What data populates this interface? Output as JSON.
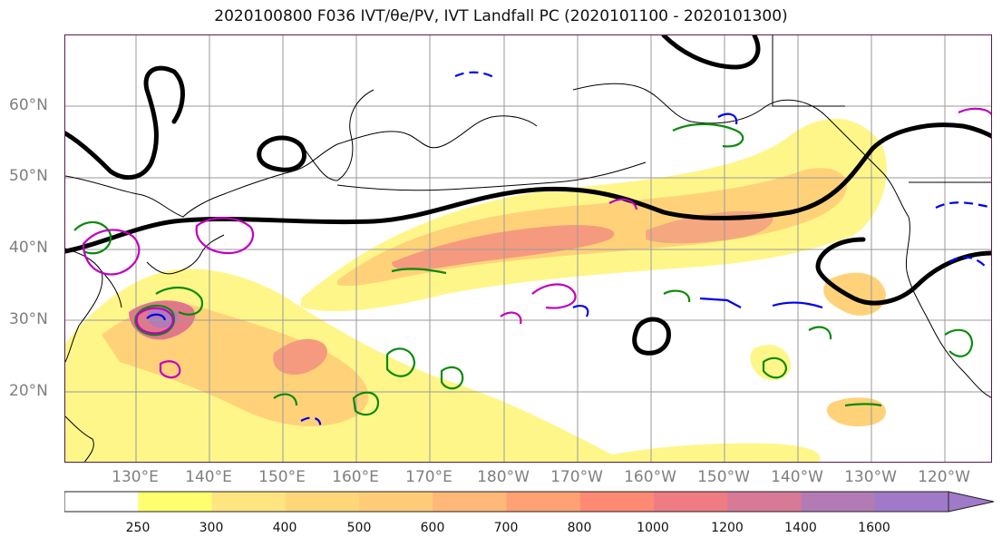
{
  "title": "2020100800 F036 IVT/θe/PV, IVT Landfall PC (2020101100 - 2020101300)",
  "lat_labels": [
    "60°N",
    "50°N",
    "40°N",
    "30°N",
    "20°N"
  ],
  "lon_labels": [
    "130°E",
    "140°E",
    "150°E",
    "160°E",
    "170°E",
    "180°W",
    "170°W",
    "160°W",
    "150°W",
    "140°W",
    "130°W",
    "120°W"
  ],
  "colorbar": {
    "levels": [
      "250",
      "300",
      "400",
      "500",
      "600",
      "700",
      "800",
      "1000",
      "1200",
      "1400",
      "1600"
    ],
    "colors": [
      "#ffffff",
      "#ffff70",
      "#ffe580",
      "#ffd77a",
      "#ffcd78",
      "#ffb877",
      "#ffa173",
      "#ff8a73",
      "#ef7c82",
      "#d77a98",
      "#b27bb6",
      "#a07ac8"
    ]
  },
  "colors": {
    "ivt_light": "#fff68a",
    "ivt_mid": "#ffd27a",
    "ivt_high": "#f59a7e",
    "ivt_peak": "#e1788a",
    "theta_e_contour": "#000000",
    "pv_green": "#0a8a0a",
    "pv_magenta": "#c000c0",
    "pv_blue": "#0000ee",
    "grid": "#9a9a9a",
    "land": "#000000"
  }
}
